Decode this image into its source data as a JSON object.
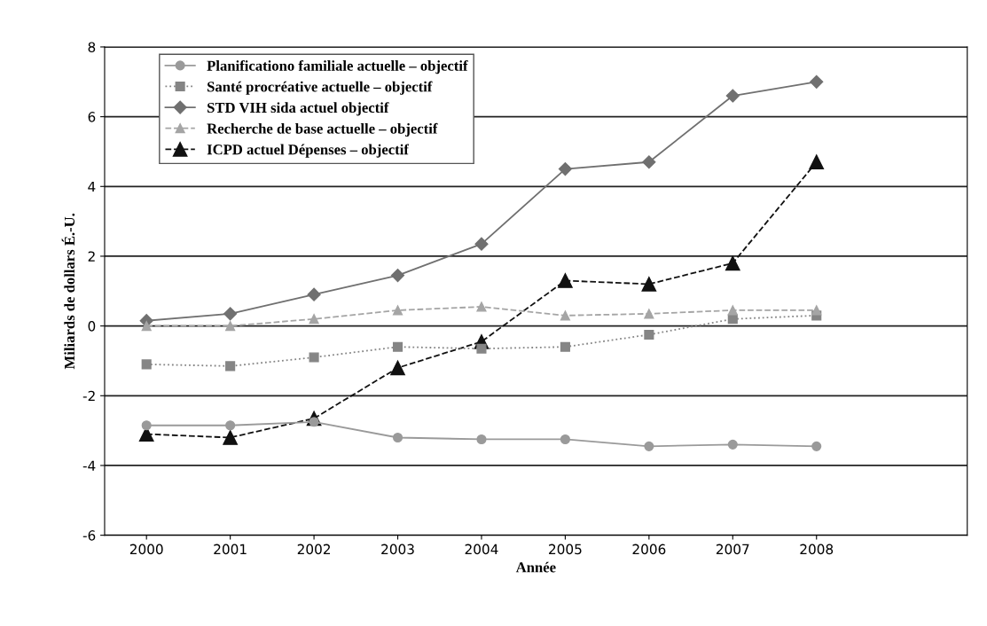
{
  "chart_data": {
    "type": "line",
    "xlabel": "Année",
    "ylabel": "Miliards de dollars É.-U.",
    "categories": [
      "2000",
      "2001",
      "2002",
      "2003",
      "2004",
      "2005",
      "2006",
      "2007",
      "2008"
    ],
    "series": [
      {
        "name": "Planificationo familiale actuelle – objectif",
        "color": "#9a9a9a",
        "marker": "circle",
        "line_style": "solid",
        "values": [
          -2.85,
          -2.85,
          -2.75,
          -3.2,
          -3.25,
          -3.25,
          -3.45,
          -3.4,
          -3.45
        ]
      },
      {
        "name": "Santé procréative actuelle – objectif",
        "color": "#858585",
        "marker": "square",
        "line_style": "dotted",
        "values": [
          -1.1,
          -1.15,
          -0.9,
          -0.6,
          -0.65,
          -0.6,
          -0.25,
          0.2,
          0.3
        ]
      },
      {
        "name": "STD VIH sida actuel objectif",
        "color": "#707070",
        "marker": "diamond",
        "line_style": "solid",
        "values": [
          0.15,
          0.35,
          0.9,
          1.45,
          2.35,
          4.5,
          4.7,
          6.6,
          7.0
        ]
      },
      {
        "name": "Recherche de base actuelle – objectif",
        "color": "#a5a5a5",
        "marker": "triangle",
        "line_style": "dashed",
        "values": [
          0.0,
          0.0,
          0.2,
          0.45,
          0.55,
          0.3,
          0.35,
          0.45,
          0.45
        ]
      },
      {
        "name": "ICPD actuel Dépenses – objectif",
        "color": "#111111",
        "marker": "triangle",
        "line_style": "dashed",
        "values": [
          -3.1,
          -3.2,
          -2.65,
          -1.2,
          -0.45,
          1.3,
          1.2,
          1.8,
          4.7
        ]
      }
    ],
    "ylim": [
      -6,
      8
    ],
    "yticks": [
      -6,
      -4,
      -2,
      0,
      2,
      4,
      6,
      8
    ],
    "grid": "y",
    "legend": "top left"
  }
}
